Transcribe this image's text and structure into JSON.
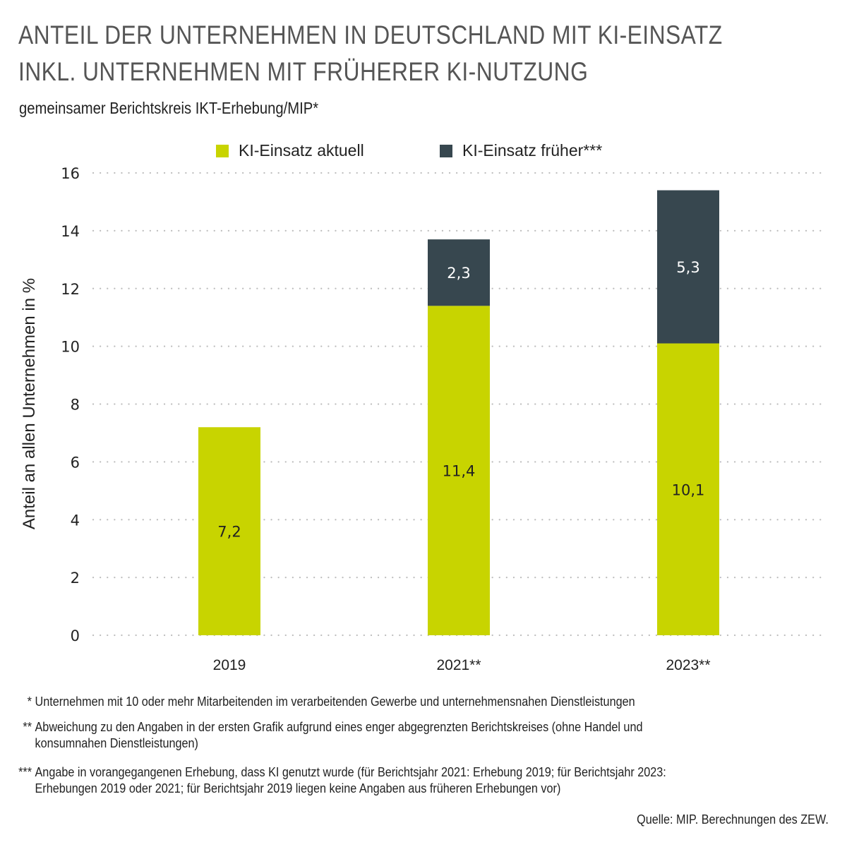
{
  "title_lines": [
    "ANTEIL DER UNTERNEHMEN IN DEUTSCHLAND MIT KI-EINSATZ",
    "INKL. UNTERNEHMEN MIT FRÜHERER KI-NUTZUNG"
  ],
  "subtitle": "gemeinsamer Berichtskreis IKT-Erhebung/MIP*",
  "colors": {
    "current": "#C8D400",
    "former": "#37474F",
    "grid": "#BDBDBD",
    "text_dark": "#222222",
    "text_light": "#FFFFFF"
  },
  "chart_data": {
    "type": "bar",
    "stacked": true,
    "title": "Anteil der Unternehmen in Deutschland mit KI-Einsatz inkl. Unternehmen mit früherer KI-Nutzung",
    "subtitle": "gemeinsamer Berichtskreis IKT-Erhebung/MIP*",
    "categories": [
      "2019",
      "2021**",
      "2023**"
    ],
    "series": [
      {
        "name": "KI-Einsatz aktuell",
        "values": [
          7.2,
          11.4,
          10.1
        ],
        "labels": [
          "7,2",
          "11,4",
          "10,1"
        ]
      },
      {
        "name": "KI-Einsatz früher***",
        "values": [
          null,
          2.3,
          5.3
        ],
        "labels": [
          "",
          "2,3",
          "5,3"
        ]
      }
    ],
    "xlabel": "",
    "ylabel": "Anteil an allen Unternehmen in %",
    "ylim": [
      0,
      16
    ],
    "yticks": [
      0,
      2,
      4,
      6,
      8,
      10,
      12,
      14,
      16
    ],
    "grid": "horizontal dotted",
    "legend_position": "top-center"
  },
  "footnotes": [
    {
      "mark": "*",
      "text": "Unternehmen mit 10 oder mehr Mitarbeitenden im verarbeitenden Gewerbe und unternehmensnahen Dienstleistungen"
    },
    {
      "mark": "**",
      "text": "Abweichung zu den Angaben in der ersten Grafik aufgrund eines enger abgegrenzten Berichtskreises (ohne Handel und\nkonsumnahen Dienstleistungen)"
    },
    {
      "mark": "***",
      "text": "Angabe in vorangegangenen Erhebung, dass KI genutzt wurde (für Berichtsjahr 2021: Erhebung 2019; für Berichtsjahr 2023:\nErhebungen 2019 oder 2021; für Berichtsjahr 2019 liegen keine Angaben aus früheren Erhebungen vor)"
    }
  ],
  "source": "Quelle: MIP. Berechnungen des ZEW."
}
